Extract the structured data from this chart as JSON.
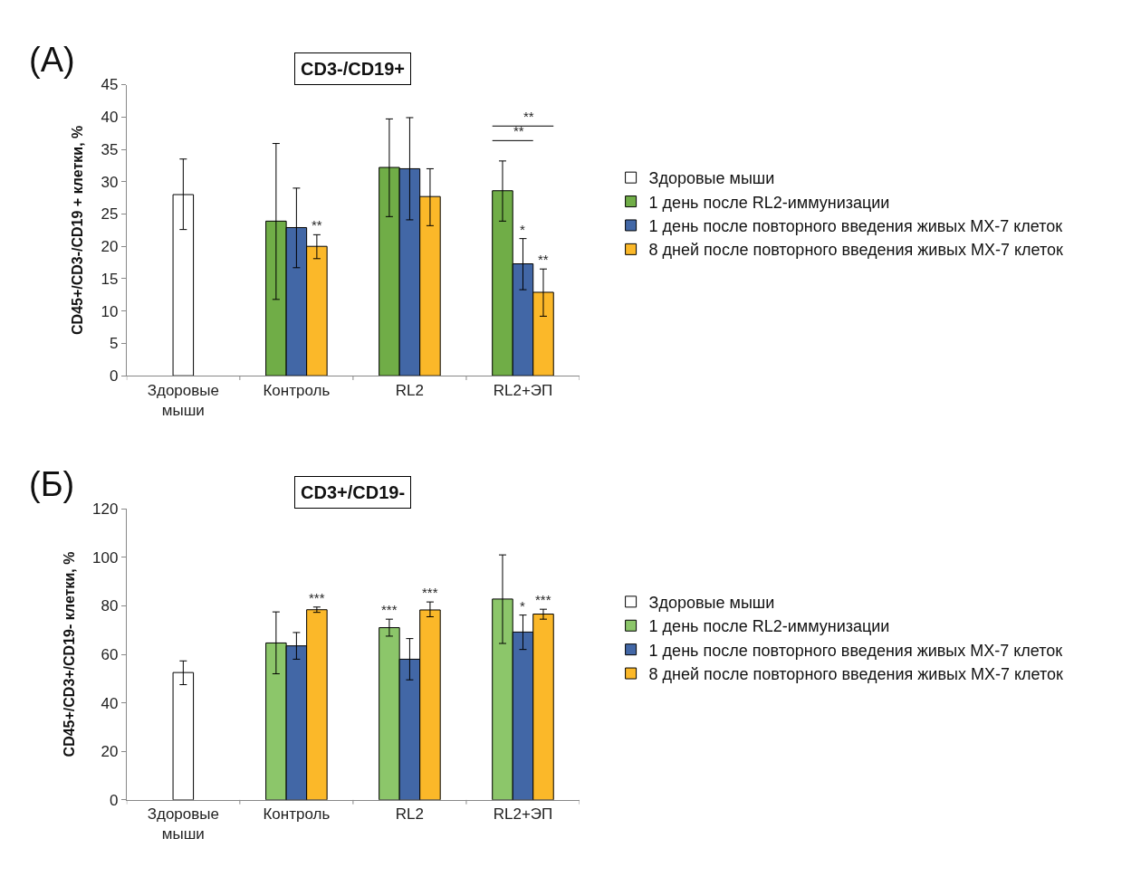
{
  "chart_data": [
    {
      "type": "bar",
      "title": "CD3-/CD19+",
      "ylabel": "CD45+/CD3-/CD19 + клетки, %",
      "categories": [
        "Здоровые мыши",
        "Контроль",
        "RL2",
        "RL2+ЭП"
      ],
      "ylim": [
        0,
        45
      ],
      "yticks": [
        0,
        5,
        10,
        15,
        20,
        25,
        30,
        35,
        40,
        45
      ],
      "legend": "right",
      "annotations": [
        "(A)",
        "**",
        "**"
      ],
      "series": [
        {
          "name": "Здоровые мыши",
          "color": "#ffffff",
          "values": [
            28.0,
            null,
            null,
            null
          ],
          "errors": [
            [
              22.6,
              33.5
            ],
            null,
            null,
            null
          ]
        },
        {
          "name": "1 день после RL2-иммунизации",
          "color": "#70ad47",
          "values": [
            null,
            23.9,
            32.2,
            28.6
          ],
          "errors": [
            null,
            [
              11.8,
              35.9
            ],
            [
              24.6,
              39.7
            ],
            [
              23.9,
              33.2
            ]
          ]
        },
        {
          "name": "1 день после повторного введения живых MX-7 клеток",
          "color": "#4267a6",
          "values": [
            null,
            22.9,
            32.0,
            17.3
          ],
          "errors": [
            null,
            [
              16.7,
              29.0
            ],
            [
              24.1,
              39.9
            ],
            [
              13.3,
              21.2
            ]
          ],
          "value_labels": [
            null,
            null,
            null,
            "*"
          ]
        },
        {
          "name": "8 дней после повторного введения живых MX-7 клеток",
          "color": "#fbb829",
          "values": [
            null,
            20.0,
            27.7,
            12.9
          ],
          "errors": [
            null,
            [
              18.1,
              21.8
            ],
            [
              23.2,
              32.0
            ],
            [
              9.2,
              16.5
            ]
          ],
          "value_labels": [
            null,
            "**",
            null,
            "**"
          ]
        }
      ]
    },
    {
      "type": "bar",
      "title": "CD3+/CD19-",
      "ylabel": "CD45+/CD3+/CD19- клетки, %",
      "categories": [
        "Здоровые мыши",
        "Контроль",
        "RL2",
        "RL2+ЭП"
      ],
      "ylim": [
        0,
        120
      ],
      "yticks": [
        0,
        20,
        40,
        60,
        80,
        100,
        120
      ],
      "legend": "right",
      "annotations": [
        "(Б)"
      ],
      "series": [
        {
          "name": "Здоровые мыши",
          "color": "#ffffff",
          "values": [
            52.5,
            null,
            null,
            null
          ],
          "errors": [
            [
              47.5,
              57.3
            ],
            null,
            null,
            null
          ]
        },
        {
          "name": "1 день после RL2-иммунизации",
          "color": "#8cc66a",
          "values": [
            null,
            64.7,
            71.0,
            82.8
          ],
          "errors": [
            null,
            [
              52.0,
              77.5
            ],
            [
              67.5,
              74.5
            ],
            [
              64.5,
              101.0
            ]
          ],
          "value_labels": [
            null,
            null,
            "***",
            null
          ]
        },
        {
          "name": "1 день после повторного введения живых MX-7 клеток",
          "color": "#4267a6",
          "values": [
            null,
            63.5,
            58.0,
            69.2
          ],
          "errors": [
            null,
            [
              58.0,
              69.0
            ],
            [
              49.5,
              66.5
            ],
            [
              62.0,
              76.2
            ]
          ],
          "value_labels": [
            null,
            null,
            null,
            "*"
          ]
        },
        {
          "name": "8 дней после повторного введения живых MX-7 клеток",
          "color": "#fbb829",
          "values": [
            null,
            78.4,
            78.3,
            76.6
          ],
          "errors": [
            null,
            [
              77.3,
              79.5
            ],
            [
              75.5,
              81.6
            ],
            [
              74.5,
              78.6
            ]
          ],
          "value_labels": [
            null,
            "***",
            "***",
            "***"
          ]
        }
      ]
    }
  ]
}
